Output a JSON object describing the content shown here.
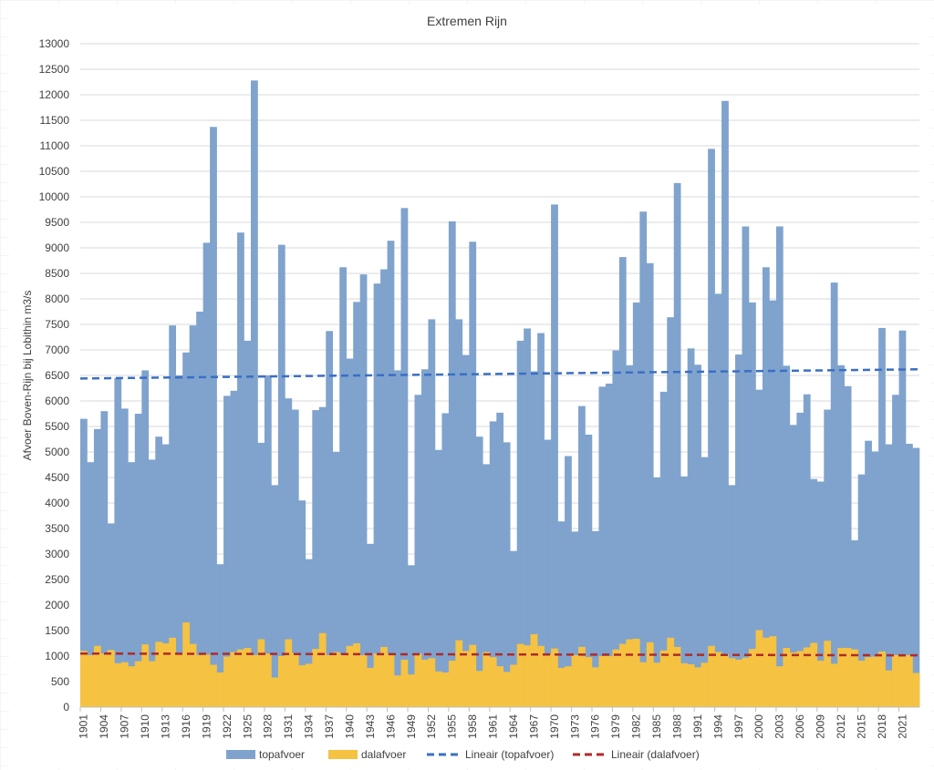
{
  "chart_data": {
    "type": "bar",
    "title": "Extremen Rijn",
    "ylabel": "Afvoer Boven-Rijn bij Lobithin m3/s",
    "xlabel": "",
    "ylim": [
      0,
      13000
    ],
    "ytick_step": 500,
    "x_start": 1901,
    "x_end": 2023,
    "x_tick_every": 3,
    "colors": {
      "topafvoer": "#7fa3cd",
      "dalafvoer": "#f5c242",
      "trend_top": "#3a6fc4",
      "trend_dal": "#b02a2a"
    },
    "series": [
      {
        "name": "topafvoer",
        "values": [
          5650,
          4800,
          5450,
          5800,
          3600,
          6450,
          5850,
          4800,
          5750,
          6600,
          4850,
          5300,
          5150,
          7480,
          6500,
          6950,
          7480,
          7750,
          9100,
          11370,
          2800,
          6100,
          6200,
          9300,
          7180,
          12280,
          5180,
          6500,
          4350,
          9060,
          6050,
          5830,
          4050,
          2900,
          5820,
          5880,
          7370,
          5000,
          8620,
          6830,
          7940,
          8480,
          3200,
          8300,
          8580,
          9140,
          6600,
          9780,
          2780,
          6120,
          6620,
          7600,
          5040,
          5760,
          9520,
          7600,
          6900,
          9120,
          5300,
          4760,
          5600,
          5770,
          5190,
          3060,
          7180,
          7420,
          6580,
          7330,
          5240,
          9850,
          3640,
          4920,
          3440,
          5900,
          5340,
          3450,
          6280,
          6340,
          6990,
          8820,
          6700,
          7930,
          9710,
          8700,
          4500,
          6180,
          7640,
          10270,
          4520,
          7030,
          6710,
          4900,
          10940,
          8100,
          11880,
          4350,
          6910,
          9420,
          7930,
          6220,
          8620,
          7970,
          9420,
          6690,
          5530,
          5770,
          6130,
          4470,
          4420,
          5830,
          8320,
          6700,
          6290,
          3270,
          4560,
          5220,
          5010,
          7430,
          5150,
          6120,
          7380,
          5160,
          5080
        ]
      },
      {
        "name": "dalafvoer",
        "values": [
          1100,
          1020,
          1200,
          1050,
          1120,
          860,
          880,
          800,
          900,
          1230,
          900,
          1280,
          1250,
          1360,
          1050,
          1660,
          1240,
          1020,
          1030,
          830,
          680,
          990,
          1080,
          1130,
          1160,
          1020,
          1330,
          1050,
          580,
          1000,
          1330,
          1060,
          820,
          850,
          1140,
          1450,
          1020,
          1080,
          1030,
          1200,
          1250,
          1020,
          770,
          1050,
          1180,
          1030,
          620,
          930,
          640,
          1050,
          930,
          960,
          700,
          680,
          910,
          1310,
          1100,
          1220,
          710,
          1080,
          980,
          800,
          690,
          830,
          1240,
          1210,
          1430,
          1200,
          1030,
          1150,
          770,
          800,
          1020,
          1180,
          980,
          780,
          1000,
          1000,
          1130,
          1240,
          1330,
          1340,
          880,
          1270,
          870,
          1110,
          1360,
          1180,
          860,
          840,
          780,
          870,
          1200,
          1080,
          1040,
          960,
          930,
          970,
          1140,
          1510,
          1360,
          1390,
          800,
          1160,
          1070,
          1100,
          1170,
          1260,
          910,
          1300,
          850,
          1160,
          1160,
          1130,
          910,
          980,
          990,
          1090,
          720,
          1020,
          990,
          1020,
          670
        ]
      }
    ],
    "trendlines": [
      {
        "name": "Lineair (topafvoer)",
        "start": 6440,
        "end": 6620
      },
      {
        "name": "Lineair (dalafvoer)",
        "start": 1050,
        "end": 1015
      }
    ]
  }
}
